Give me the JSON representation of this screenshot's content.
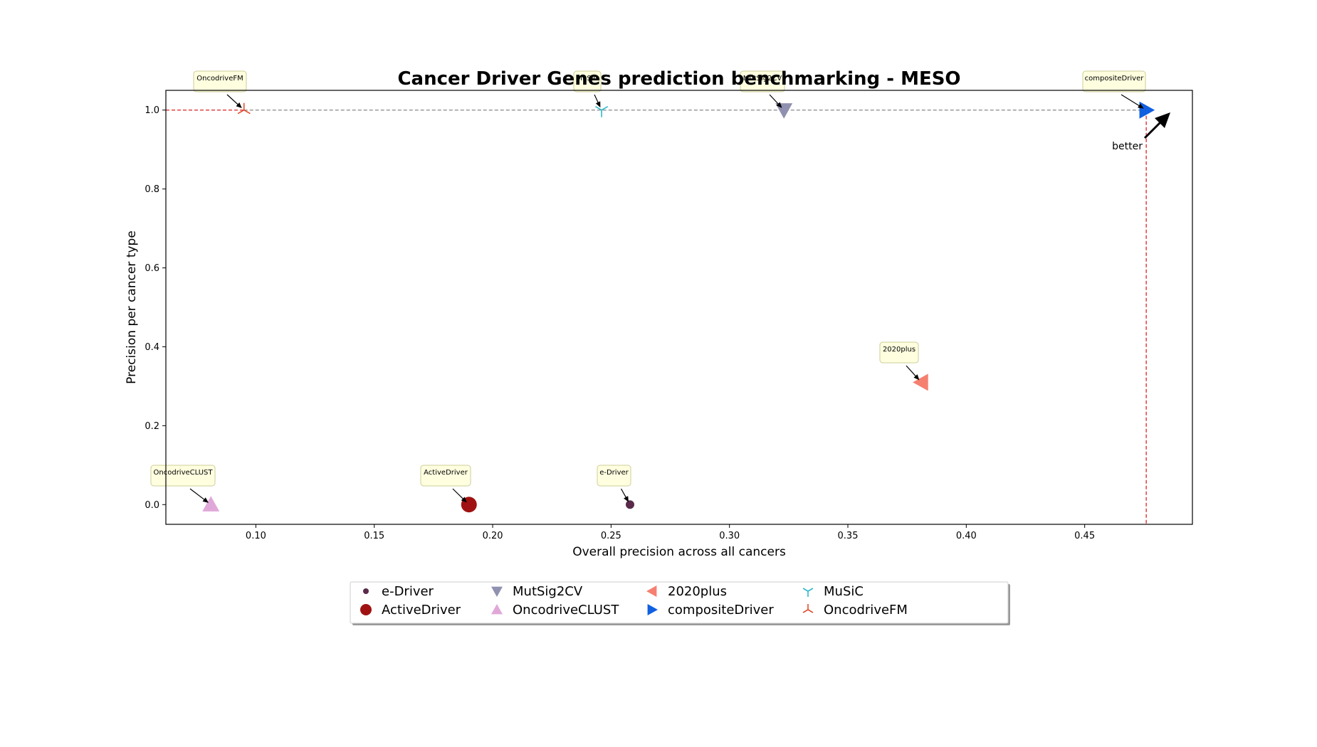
{
  "chart_data": {
    "type": "scatter",
    "title": "Cancer Driver Genes prediction benchmarking - MESO",
    "xlabel": "Overall precision across all cancers",
    "ylabel": "Precision per cancer type",
    "xlim": [
      0.062,
      0.4955
    ],
    "ylim": [
      -0.05,
      1.05
    ],
    "xticks": [
      0.1,
      0.15,
      0.2,
      0.25,
      0.3,
      0.35,
      0.4,
      0.45
    ],
    "xtick_labels": [
      "0.10",
      "0.15",
      "0.20",
      "0.25",
      "0.30",
      "0.35",
      "0.40",
      "0.45"
    ],
    "yticks": [
      0.0,
      0.2,
      0.4,
      0.6,
      0.8,
      1.0
    ],
    "ytick_labels": [
      "0.0",
      "0.2",
      "0.4",
      "0.6",
      "0.8",
      "1.0"
    ],
    "grid": false,
    "legend_position": "bottom-center",
    "better_label": "better",
    "pareto_front": [
      [
        0.095,
        1.0
      ],
      [
        0.476,
        1.0
      ]
    ],
    "series": [
      {
        "name": "e-Driver",
        "x": 0.258,
        "y": 0.0,
        "marker": "circle-small",
        "color": "#5a2a4a"
      },
      {
        "name": "ActiveDriver",
        "x": 0.19,
        "y": 0.0,
        "marker": "circle",
        "color": "#a01212"
      },
      {
        "name": "MutSig2CV",
        "x": 0.323,
        "y": 1.0,
        "marker": "triangle-down",
        "color": "#9090b0"
      },
      {
        "name": "OncodriveCLUST",
        "x": 0.081,
        "y": 0.0,
        "marker": "triangle-up",
        "color": "#e0a8d8"
      },
      {
        "name": "2020plus",
        "x": 0.381,
        "y": 0.31,
        "marker": "triangle-left",
        "color": "#f58070"
      },
      {
        "name": "compositeDriver",
        "x": 0.476,
        "y": 1.0,
        "marker": "triangle-right",
        "color": "#1060e0"
      },
      {
        "name": "MuSiC",
        "x": 0.246,
        "y": 1.0,
        "marker": "tri-down",
        "color": "#30b8c8"
      },
      {
        "name": "OncodriveFM",
        "x": 0.095,
        "y": 1.0,
        "marker": "tri-up",
        "color": "#e05030"
      }
    ],
    "annotations": [
      {
        "text": "OncodriveFM",
        "target": "OncodriveFM"
      },
      {
        "text": "MuSiC",
        "target": "MuSiC"
      },
      {
        "text": "MutSig2CV",
        "target": "MutSig2CV"
      },
      {
        "text": "compositeDriver",
        "target": "compositeDriver"
      },
      {
        "text": "2020plus",
        "target": "2020plus"
      },
      {
        "text": "OncodriveCLUST",
        "target": "OncodriveCLUST"
      },
      {
        "text": "ActiveDriver",
        "target": "ActiveDriver"
      },
      {
        "text": "e-Driver",
        "target": "e-Driver"
      }
    ]
  }
}
